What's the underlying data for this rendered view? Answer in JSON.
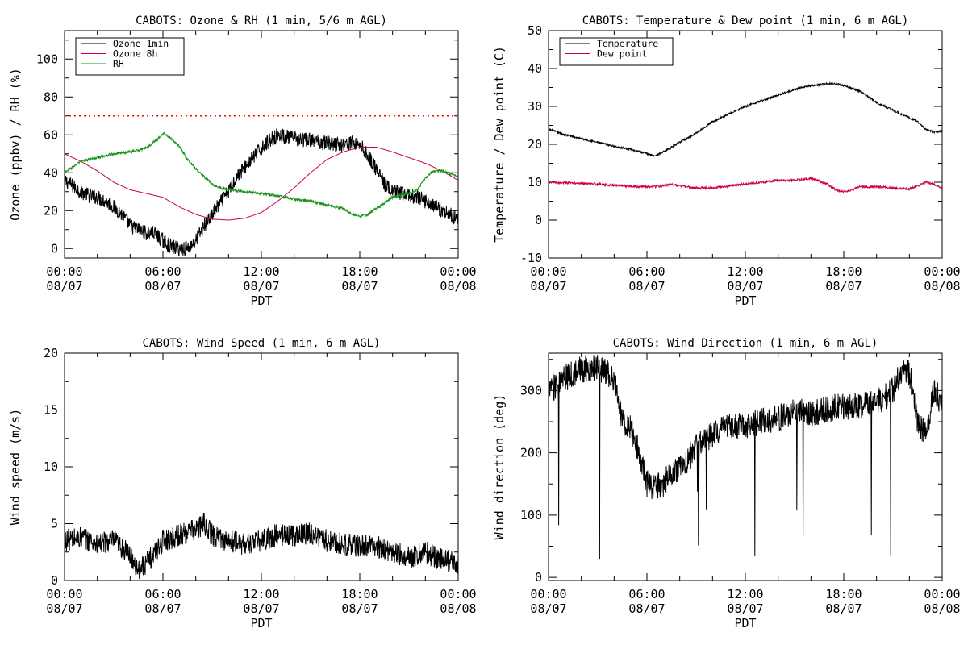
{
  "colors": {
    "black": "#000000",
    "ozone8h": "#cc0044",
    "rh": "#189418",
    "threshold": "#ff0000"
  },
  "chart_data": [
    {
      "type": "line",
      "title": "CABOTS: Ozone & RH (1 min, 5/6 m AGL)",
      "xlabel": "PDT",
      "ylabel": "Ozone (ppbv) / RH (%)",
      "xlim_hours": [
        0,
        24
      ],
      "ylim": [
        -5,
        115
      ],
      "xticks": [
        {
          "t": 0,
          "line1": "00:00",
          "line2": "08/07"
        },
        {
          "t": 6,
          "line1": "06:00",
          "line2": "08/07"
        },
        {
          "t": 12,
          "line1": "12:00",
          "line2": "08/07"
        },
        {
          "t": 18,
          "line1": "18:00",
          "line2": "08/07"
        },
        {
          "t": 24,
          "line1": "00:00",
          "line2": "08/08"
        }
      ],
      "yticks": [
        0,
        20,
        40,
        60,
        80,
        100
      ],
      "legend_position": "top-left",
      "reference_lines": [
        {
          "y": 70,
          "color": "#ff0000",
          "style": "dotted"
        }
      ],
      "series": [
        {
          "name": "Ozone 1min",
          "color": "#000000",
          "noise": 4,
          "points": [
            [
              0,
              36
            ],
            [
              0.5,
              33
            ],
            [
              1,
              30
            ],
            [
              1.5,
              28
            ],
            [
              2,
              27
            ],
            [
              2.5,
              25
            ],
            [
              3,
              22
            ],
            [
              3.5,
              18
            ],
            [
              4,
              12
            ],
            [
              4.5,
              10
            ],
            [
              5,
              8
            ],
            [
              5.5,
              8
            ],
            [
              6,
              4
            ],
            [
              6.5,
              1
            ],
            [
              7,
              0
            ],
            [
              7.5,
              0
            ],
            [
              8,
              4
            ],
            [
              8.5,
              12
            ],
            [
              9,
              18
            ],
            [
              9.5,
              24
            ],
            [
              10,
              30
            ],
            [
              10.5,
              38
            ],
            [
              11,
              43
            ],
            [
              11.5,
              48
            ],
            [
              12,
              53
            ],
            [
              12.5,
              57
            ],
            [
              13,
              60
            ],
            [
              13.5,
              59
            ],
            [
              14,
              58
            ],
            [
              15,
              57
            ],
            [
              16,
              56
            ],
            [
              16.5,
              55
            ],
            [
              17,
              55
            ],
            [
              17.5,
              56
            ],
            [
              18,
              55
            ],
            [
              18.5,
              49
            ],
            [
              19,
              42
            ],
            [
              19.5,
              34
            ],
            [
              20,
              30
            ],
            [
              20.5,
              29
            ],
            [
              21,
              28
            ],
            [
              21.5,
              27
            ],
            [
              22,
              25
            ],
            [
              22.5,
              23
            ],
            [
              23,
              20
            ],
            [
              23.5,
              18
            ],
            [
              24,
              16
            ]
          ]
        },
        {
          "name": "Ozone 8h",
          "color": "#cc0044",
          "noise": 0,
          "points": [
            [
              0,
              50
            ],
            [
              1,
              46
            ],
            [
              2,
              41
            ],
            [
              3,
              35
            ],
            [
              4,
              31
            ],
            [
              5,
              29
            ],
            [
              6,
              27
            ],
            [
              7,
              22
            ],
            [
              8,
              18
            ],
            [
              9,
              15.5
            ],
            [
              10,
              15
            ],
            [
              11,
              16
            ],
            [
              12,
              19
            ],
            [
              13,
              25
            ],
            [
              14,
              32
            ],
            [
              15,
              40
            ],
            [
              16,
              47
            ],
            [
              17,
              51
            ],
            [
              18,
              53.5
            ],
            [
              19,
              53.5
            ],
            [
              20,
              51
            ],
            [
              21,
              48
            ],
            [
              22,
              45
            ],
            [
              23,
              41
            ],
            [
              24,
              36
            ]
          ]
        },
        {
          "name": "RH",
          "color": "#189418",
          "noise": 0.7,
          "points": [
            [
              0,
              40
            ],
            [
              0.5,
              43
            ],
            [
              1,
              46
            ],
            [
              2,
              48
            ],
            [
              3,
              50
            ],
            [
              4,
              51
            ],
            [
              5,
              53
            ],
            [
              5.7,
              58
            ],
            [
              6.1,
              61
            ],
            [
              6.5,
              58
            ],
            [
              7,
              54
            ],
            [
              7.5,
              47
            ],
            [
              8,
              42
            ],
            [
              8.5,
              38
            ],
            [
              9,
              34
            ],
            [
              9.5,
              32
            ],
            [
              10,
              31
            ],
            [
              11,
              30
            ],
            [
              12,
              29
            ],
            [
              13,
              28
            ],
            [
              14,
              26
            ],
            [
              15,
              25
            ],
            [
              16,
              23
            ],
            [
              17,
              21
            ],
            [
              17.5,
              18
            ],
            [
              18,
              17
            ],
            [
              18.5,
              18
            ],
            [
              19,
              21
            ],
            [
              19.5,
              24
            ],
            [
              20,
              27
            ],
            [
              21,
              29
            ],
            [
              21.5,
              31
            ],
            [
              22,
              37
            ],
            [
              22.5,
              41
            ],
            [
              23,
              41
            ],
            [
              24,
              38
            ]
          ]
        }
      ]
    },
    {
      "type": "line",
      "title": "CABOTS: Temperature & Dew point (1 min, 6 m AGL)",
      "xlabel": "PDT",
      "ylabel": "Temperature / Dew point (C)",
      "xlim_hours": [
        0,
        24
      ],
      "ylim": [
        -10,
        50
      ],
      "xticks": [
        {
          "t": 0,
          "line1": "00:00",
          "line2": "08/07"
        },
        {
          "t": 6,
          "line1": "06:00",
          "line2": "08/07"
        },
        {
          "t": 12,
          "line1": "12:00",
          "line2": "08/07"
        },
        {
          "t": 18,
          "line1": "18:00",
          "line2": "08/07"
        },
        {
          "t": 24,
          "line1": "00:00",
          "line2": "08/08"
        }
      ],
      "yticks": [
        -10,
        0,
        10,
        20,
        30,
        40,
        50
      ],
      "legend_position": "top-left",
      "reference_lines": [],
      "series": [
        {
          "name": "Temperature",
          "color": "#000000",
          "noise": 0.25,
          "points": [
            [
              0,
              24
            ],
            [
              1,
              22.5
            ],
            [
              2,
              21.5
            ],
            [
              3,
              20.5
            ],
            [
              4,
              19.5
            ],
            [
              5,
              18.7
            ],
            [
              6,
              17.5
            ],
            [
              6.5,
              17
            ],
            [
              7,
              18
            ],
            [
              8,
              20.5
            ],
            [
              9,
              23
            ],
            [
              10,
              26
            ],
            [
              11,
              28
            ],
            [
              12,
              30
            ],
            [
              13,
              31.5
            ],
            [
              14,
              33
            ],
            [
              15,
              34.5
            ],
            [
              16,
              35.5
            ],
            [
              17,
              36
            ],
            [
              17.5,
              36
            ],
            [
              18,
              35.5
            ],
            [
              19,
              34
            ],
            [
              20,
              31
            ],
            [
              21,
              29
            ],
            [
              22,
              27
            ],
            [
              22.5,
              26
            ],
            [
              23,
              24
            ],
            [
              23.5,
              23.2
            ],
            [
              24,
              23.5
            ]
          ]
        },
        {
          "name": "Dew point",
          "color": "#cc0044",
          "noise": 0.3,
          "points": [
            [
              0,
              10
            ],
            [
              1,
              9.8
            ],
            [
              2,
              9.7
            ],
            [
              3,
              9.5
            ],
            [
              4,
              9.2
            ],
            [
              5,
              9
            ],
            [
              6,
              8.8
            ],
            [
              7,
              9
            ],
            [
              7.5,
              9.5
            ],
            [
              8,
              9
            ],
            [
              9,
              8.5
            ],
            [
              10,
              8.5
            ],
            [
              11,
              9
            ],
            [
              12,
              9.5
            ],
            [
              13,
              10
            ],
            [
              14,
              10.5
            ],
            [
              15,
              10.5
            ],
            [
              16,
              11
            ],
            [
              17,
              9.5
            ],
            [
              17.5,
              8
            ],
            [
              18,
              7.5
            ],
            [
              18.5,
              8
            ],
            [
              19,
              8.8
            ],
            [
              20,
              8.8
            ],
            [
              21,
              8.5
            ],
            [
              22,
              8.2
            ],
            [
              22.5,
              9
            ],
            [
              23,
              10
            ],
            [
              23.5,
              9.5
            ],
            [
              24,
              8.5
            ]
          ]
        }
      ]
    },
    {
      "type": "line",
      "title": "CABOTS: Wind Speed (1 min, 6 m AGL)",
      "xlabel": "PDT",
      "ylabel": "Wind speed (m/s)",
      "xlim_hours": [
        0,
        24
      ],
      "ylim": [
        0,
        20
      ],
      "xticks": [
        {
          "t": 0,
          "line1": "00:00",
          "line2": "08/07"
        },
        {
          "t": 6,
          "line1": "06:00",
          "line2": "08/07"
        },
        {
          "t": 12,
          "line1": "12:00",
          "line2": "08/07"
        },
        {
          "t": 18,
          "line1": "18:00",
          "line2": "08/07"
        },
        {
          "t": 24,
          "line1": "00:00",
          "line2": "08/08"
        }
      ],
      "yticks": [
        0,
        5,
        10,
        15,
        20
      ],
      "legend_position": "none",
      "reference_lines": [],
      "series": [
        {
          "name": "",
          "color": "#000000",
          "noise": 1.0,
          "points": [
            [
              0,
              3.5
            ],
            [
              1,
              3.8
            ],
            [
              2,
              3.2
            ],
            [
              3,
              3.5
            ],
            [
              4,
              2.2
            ],
            [
              4.5,
              1
            ],
            [
              5,
              1.5
            ],
            [
              5.5,
              2.5
            ],
            [
              6,
              3.5
            ],
            [
              7,
              4
            ],
            [
              8,
              4.5
            ],
            [
              8.5,
              5
            ],
            [
              9,
              4
            ],
            [
              10,
              3.5
            ],
            [
              11,
              3.2
            ],
            [
              12,
              3.5
            ],
            [
              13,
              4
            ],
            [
              14,
              4
            ],
            [
              15,
              4.2
            ],
            [
              16,
              3.5
            ],
            [
              17,
              3.2
            ],
            [
              18,
              3
            ],
            [
              19,
              3
            ],
            [
              20,
              2.5
            ],
            [
              21,
              2
            ],
            [
              22,
              2.5
            ],
            [
              23,
              1.8
            ],
            [
              24,
              1.5
            ]
          ]
        }
      ]
    },
    {
      "type": "line",
      "title": "CABOTS: Wind Direction (1 min, 6 m AGL)",
      "xlabel": "PDT",
      "ylabel": "Wind direction (deg)",
      "xlim_hours": [
        0,
        24
      ],
      "ylim": [
        -5,
        360
      ],
      "xticks": [
        {
          "t": 0,
          "line1": "00:00",
          "line2": "08/07"
        },
        {
          "t": 6,
          "line1": "06:00",
          "line2": "08/07"
        },
        {
          "t": 12,
          "line1": "12:00",
          "line2": "08/07"
        },
        {
          "t": 18,
          "line1": "18:00",
          "line2": "08/07"
        },
        {
          "t": 24,
          "line1": "00:00",
          "line2": "08/08"
        }
      ],
      "yticks": [
        0,
        100,
        200,
        300
      ],
      "legend_position": "none",
      "reference_lines": [],
      "series": [
        {
          "name": "",
          "color": "#000000",
          "noise": 22,
          "points": [
            [
              0,
              300
            ],
            [
              1,
              320
            ],
            [
              2,
              335
            ],
            [
              3,
              335
            ],
            [
              3.5,
              330
            ],
            [
              4,
              320
            ],
            [
              4.5,
              250
            ],
            [
              5,
              240
            ],
            [
              5.5,
              200
            ],
            [
              6,
              150
            ],
            [
              6.5,
              145
            ],
            [
              7,
              150
            ],
            [
              7.5,
              170
            ],
            [
              8,
              175
            ],
            [
              8.5,
              190
            ],
            [
              9,
              210
            ],
            [
              10,
              230
            ],
            [
              11,
              240
            ],
            [
              12,
              245
            ],
            [
              13,
              250
            ],
            [
              14,
              255
            ],
            [
              15,
              265
            ],
            [
              16,
              265
            ],
            [
              17,
              270
            ],
            [
              18,
              275
            ],
            [
              19,
              275
            ],
            [
              20,
              280
            ],
            [
              21,
              300
            ],
            [
              21.5,
              330
            ],
            [
              22,
              330
            ],
            [
              22.5,
              250
            ],
            [
              23,
              230
            ],
            [
              23.5,
              300
            ],
            [
              24,
              280
            ]
          ]
        }
      ]
    }
  ]
}
